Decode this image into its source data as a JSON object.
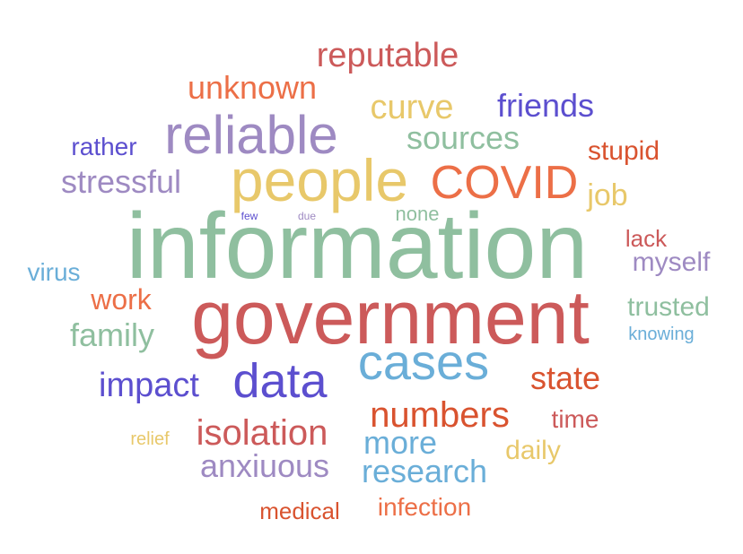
{
  "palette": {
    "red": "#cc5a5a",
    "orange": "#ec6f47",
    "yellow": "#e8c86a",
    "purple": "#9e8ac2",
    "blue": "#5c4fcf",
    "sky": "#6aaed8",
    "green": "#8fbf9f",
    "darkorange": "#d9532f"
  },
  "words": {
    "information": "information",
    "government": "government",
    "people": "people",
    "reliable": "reliable",
    "covid": "COVID",
    "cases": "cases",
    "data": "data",
    "numbers": "numbers",
    "reputable": "reputable",
    "unknown": "unknown",
    "curve": "curve",
    "friends": "friends",
    "sources": "sources",
    "stupid": "stupid",
    "rather": "rather",
    "stressful": "stressful",
    "job": "job",
    "few": "few",
    "due": "due",
    "none": "none",
    "lack": "lack",
    "virus": "virus",
    "myself": "myself",
    "work": "work",
    "trusted": "trusted",
    "family": "family",
    "knowing": "knowing",
    "impact": "impact",
    "state": "state",
    "isolation": "isolation",
    "time": "time",
    "relief": "relief",
    "more": "more",
    "daily": "daily",
    "anxiuous": "anxiuous",
    "research": "research",
    "medical": "medical",
    "infection": "infection"
  }
}
